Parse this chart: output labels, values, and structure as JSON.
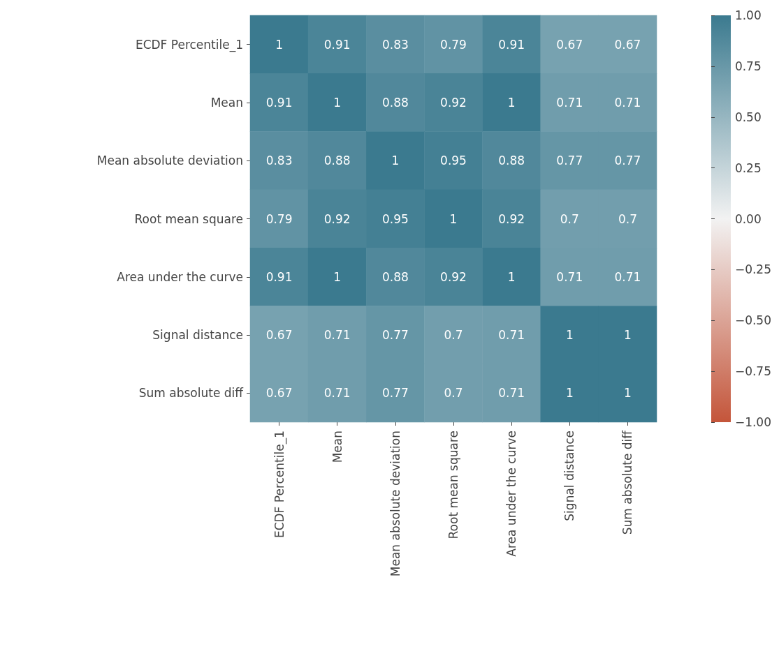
{
  "chart_data": {
    "type": "heatmap",
    "categories": [
      "ECDF Percentile_1",
      "Mean",
      "Mean absolute deviation",
      "Root mean square",
      "Area under the curve",
      "Signal distance",
      "Sum absolute diff"
    ],
    "y_categories": [
      "ECDF Percentile_1",
      "Mean",
      "Mean absolute deviation",
      "Root mean square",
      "Area under the curve",
      "Signal distance",
      "Sum absolute diff"
    ],
    "cells": [
      [
        1,
        0.91,
        0.83,
        0.79,
        0.91,
        0.67,
        0.67
      ],
      [
        0.91,
        1,
        0.88,
        0.92,
        1,
        0.71,
        0.71
      ],
      [
        0.83,
        0.88,
        1,
        0.95,
        0.88,
        0.77,
        0.77
      ],
      [
        0.79,
        0.92,
        0.95,
        1,
        0.92,
        0.7,
        0.7
      ],
      [
        0.91,
        1,
        0.88,
        0.92,
        1,
        0.71,
        0.71
      ],
      [
        0.67,
        0.71,
        0.77,
        0.7,
        0.71,
        1,
        1
      ],
      [
        0.67,
        0.71,
        0.77,
        0.7,
        0.71,
        1,
        1
      ]
    ],
    "clim": [
      -1,
      1
    ],
    "cticks": [
      {
        "value": -1,
        "label": "−1.00"
      },
      {
        "value": -0.75,
        "label": "−0.75"
      },
      {
        "value": -0.5,
        "label": "−0.50"
      },
      {
        "value": -0.25,
        "label": "−0.25"
      },
      {
        "value": 0,
        "label": "0.00"
      },
      {
        "value": 0.25,
        "label": "0.25"
      },
      {
        "value": 0.5,
        "label": "0.50"
      },
      {
        "value": 0.75,
        "label": "0.75"
      },
      {
        "value": 1,
        "label": "1.00"
      }
    ],
    "data_labels": true
  }
}
